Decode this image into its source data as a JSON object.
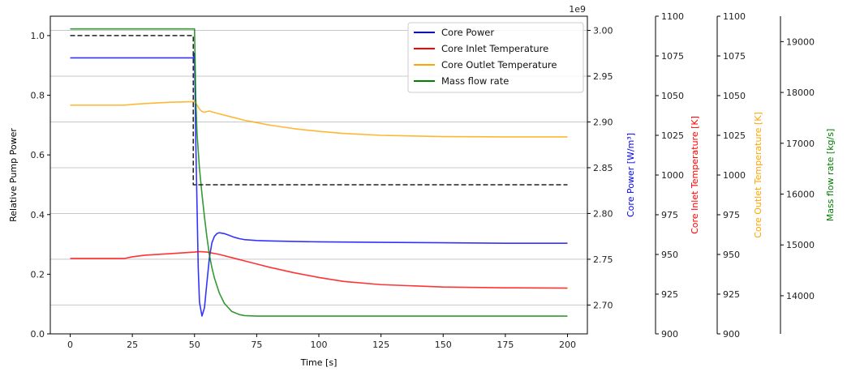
{
  "chart_data": {
    "type": "line",
    "xlabel": "Time [s]",
    "xlim": [
      -8,
      208
    ],
    "x_ticks": [
      0,
      25,
      50,
      75,
      100,
      125,
      150,
      175,
      200
    ],
    "grid": "horizontal",
    "legend_position": "top-right",
    "axes": {
      "left": {
        "label": "Relative Pump Power",
        "range": [
          0,
          1.065
        ],
        "ticks": [
          0.0,
          0.2,
          0.4,
          0.6,
          0.8,
          1.0
        ],
        "tick_format": "1",
        "color": "#000000"
      },
      "power": {
        "label": "Core Power [W/m³]",
        "range": [
          2.6685,
          3.0155
        ],
        "ticks": [
          2.7,
          2.75,
          2.8,
          2.85,
          2.9,
          2.95,
          3.0
        ],
        "tick_format": "2",
        "offset_text": "1e9",
        "color": "#0000ff"
      },
      "inlet": {
        "label": "Core Inlet Temperature [K]",
        "range": [
          900,
          1100
        ],
        "ticks": [
          900,
          925,
          950,
          975,
          1000,
          1025,
          1050,
          1075,
          1100
        ],
        "tick_format": "0",
        "color": "#ff0000"
      },
      "outlet": {
        "label": "Core Outlet Temperature [K]",
        "range": [
          900,
          1100
        ],
        "ticks": [
          900,
          925,
          950,
          975,
          1000,
          1025,
          1050,
          1075,
          1100
        ],
        "tick_format": "0",
        "color": "#ffa500"
      },
      "mass": {
        "label": "Mass flow rate [kg/s]",
        "range": [
          13250,
          19500
        ],
        "ticks": [
          14000,
          15000,
          16000,
          17000,
          18000,
          19000
        ],
        "tick_format": "0",
        "color": "#008000"
      }
    },
    "series": [
      {
        "name": "Core Power",
        "axis": "power",
        "color": "#0000ff",
        "x": [
          0,
          49.5,
          50,
          50.5,
          51,
          51.5,
          52,
          53,
          54,
          55,
          56,
          57,
          58,
          59,
          60,
          62,
          64,
          66,
          68,
          70,
          75,
          80,
          90,
          100,
          125,
          150,
          175,
          200
        ],
        "y": [
          2.97,
          2.97,
          2.975,
          2.88,
          2.81,
          2.74,
          2.703,
          2.688,
          2.697,
          2.725,
          2.752,
          2.768,
          2.775,
          2.778,
          2.779,
          2.778,
          2.776,
          2.774,
          2.7725,
          2.7715,
          2.7705,
          2.77,
          2.7695,
          2.769,
          2.7685,
          2.768,
          2.7675,
          2.7675
        ]
      },
      {
        "name": "Core Inlet Temperature",
        "axis": "inlet",
        "color": "#ff0000",
        "x": [
          0,
          22,
          25,
          30,
          40,
          50,
          52,
          55,
          60,
          65,
          70,
          75,
          80,
          90,
          100,
          110,
          125,
          150,
          175,
          200
        ],
        "y": [
          947.5,
          947.5,
          948.5,
          949.5,
          950.5,
          951.5,
          951.8,
          951.5,
          950.0,
          948.0,
          946.0,
          944.0,
          942.0,
          938.5,
          935.5,
          933.0,
          931.0,
          929.5,
          929.0,
          928.8
        ]
      },
      {
        "name": "Core Outlet Temperature",
        "axis": "outlet",
        "color": "#ffa500",
        "x": [
          0,
          22,
          25,
          30,
          40,
          50,
          51,
          52,
          53,
          54,
          55,
          56,
          57,
          60,
          65,
          70,
          75,
          80,
          90,
          100,
          110,
          125,
          150,
          175,
          200
        ],
        "y": [
          1044,
          1044,
          1044.5,
          1045,
          1045.8,
          1046.2,
          1044,
          1041.5,
          1040,
          1039.6,
          1040,
          1040.3,
          1039.8,
          1038.5,
          1036.5,
          1034.5,
          1033,
          1031.5,
          1029.2,
          1027.5,
          1026.2,
          1025,
          1024.2,
          1024,
          1024
        ]
      },
      {
        "name": "Mass flow rate",
        "axis": "mass",
        "color": "#008000",
        "x": [
          0,
          49.9,
          50,
          50.5,
          51,
          52,
          53,
          54,
          55,
          56,
          57,
          58,
          60,
          62,
          65,
          68,
          70,
          72,
          75,
          80,
          90,
          100,
          125,
          150,
          175,
          200
        ],
        "y": [
          19250,
          19250,
          19250,
          17900,
          17200,
          16500,
          16000,
          15550,
          15150,
          14800,
          14550,
          14350,
          14050,
          13850,
          13690,
          13630,
          13610,
          13605,
          13600,
          13600,
          13600,
          13600,
          13600,
          13600,
          13600,
          13600
        ]
      },
      {
        "name": "",
        "axis": "left",
        "color": "#222222",
        "dash": "dashed",
        "x": [
          0,
          49.5,
          49.5,
          200
        ],
        "y": [
          1.0,
          1.0,
          0.5,
          0.5
        ]
      }
    ],
    "legend": [
      "Core Power",
      "Core Inlet Temperature",
      "Core Outlet Temperature",
      "Mass flow rate"
    ]
  }
}
